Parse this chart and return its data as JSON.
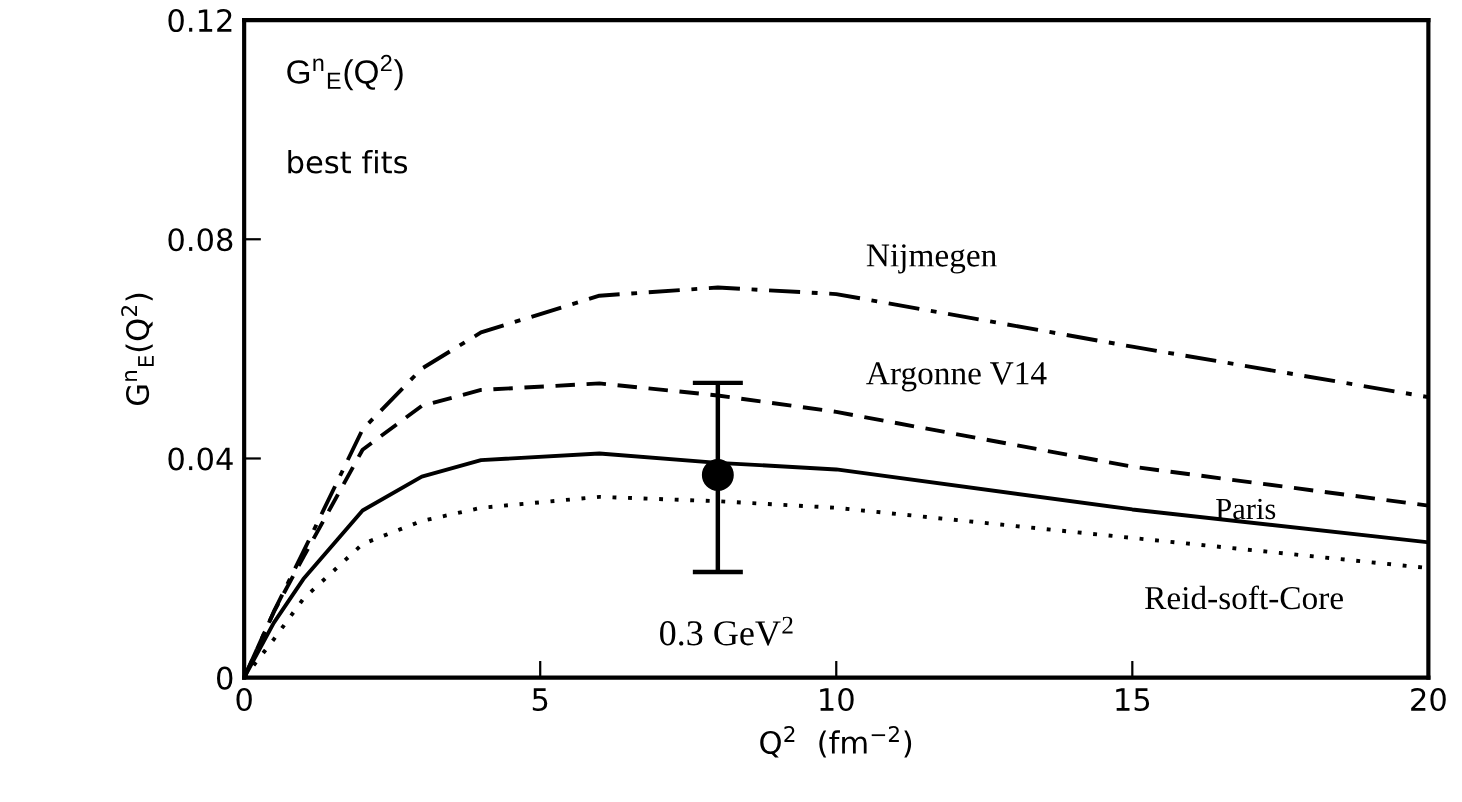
{
  "chart_data": {
    "type": "line",
    "xlabel": "Q$^{2}$  (fm$^{−2}$)",
    "ylabel": "G$^{n}$$_{E}$(Q$^{2}$)",
    "xlim": [
      0,
      20
    ],
    "ylim": [
      0,
      0.12
    ],
    "xticks": [
      0,
      5,
      10,
      15,
      20
    ],
    "yticks": [
      0,
      0.04,
      0.08,
      0.12
    ],
    "grid": false,
    "legend": false,
    "marker": "none",
    "series": [
      {
        "name": "Nijmegen",
        "color": "#000000",
        "line_style": "dashdot",
        "x": [
          0,
          0.5,
          1,
          2,
          3,
          4,
          6,
          8,
          10,
          15,
          20
        ],
        "values": [
          0,
          0.012,
          0.023,
          0.0453,
          0.0564,
          0.063,
          0.0697,
          0.0712,
          0.07,
          0.0604,
          0.0512
        ]
      },
      {
        "name": "Argonne V14",
        "color": "#000000",
        "line_style": "dashed",
        "x": [
          0,
          0.5,
          1,
          2,
          3,
          4,
          6,
          8,
          10,
          15,
          20
        ],
        "values": [
          0,
          0.012,
          0.022,
          0.0416,
          0.0496,
          0.0525,
          0.0537,
          0.0515,
          0.0485,
          0.0385,
          0.0314
        ]
      },
      {
        "name": "Paris",
        "color": "#000000",
        "line_style": "solid",
        "x": [
          0,
          0.5,
          1,
          2,
          3,
          4,
          6,
          8,
          10,
          15,
          20
        ],
        "values": [
          0,
          0.01,
          0.018,
          0.0305,
          0.0367,
          0.0397,
          0.0409,
          0.0392,
          0.038,
          0.0307,
          0.0247
        ]
      },
      {
        "name": "Reid-soft-Core",
        "color": "#000000",
        "line_style": "dotted",
        "x": [
          0,
          0.5,
          1,
          2,
          3,
          4,
          6,
          8,
          10,
          15,
          20
        ],
        "values": [
          0,
          0.007,
          0.0144,
          0.0244,
          0.0286,
          0.031,
          0.033,
          0.0322,
          0.031,
          0.0255,
          0.02
        ]
      },
      {
        "type": "scatter",
        "color": "#000000",
        "marker": "circle",
        "x": [
          8
        ],
        "values": [
          0.037
        ],
        "errors": [
          [
            0.0193,
            0.0538
          ]
        ]
      }
    ],
    "annotations": [
      "G$^{n}$$_{E}$(Q$^{2}$)",
      "best fits",
      "0.3 GeV$^{2}$"
    ]
  }
}
